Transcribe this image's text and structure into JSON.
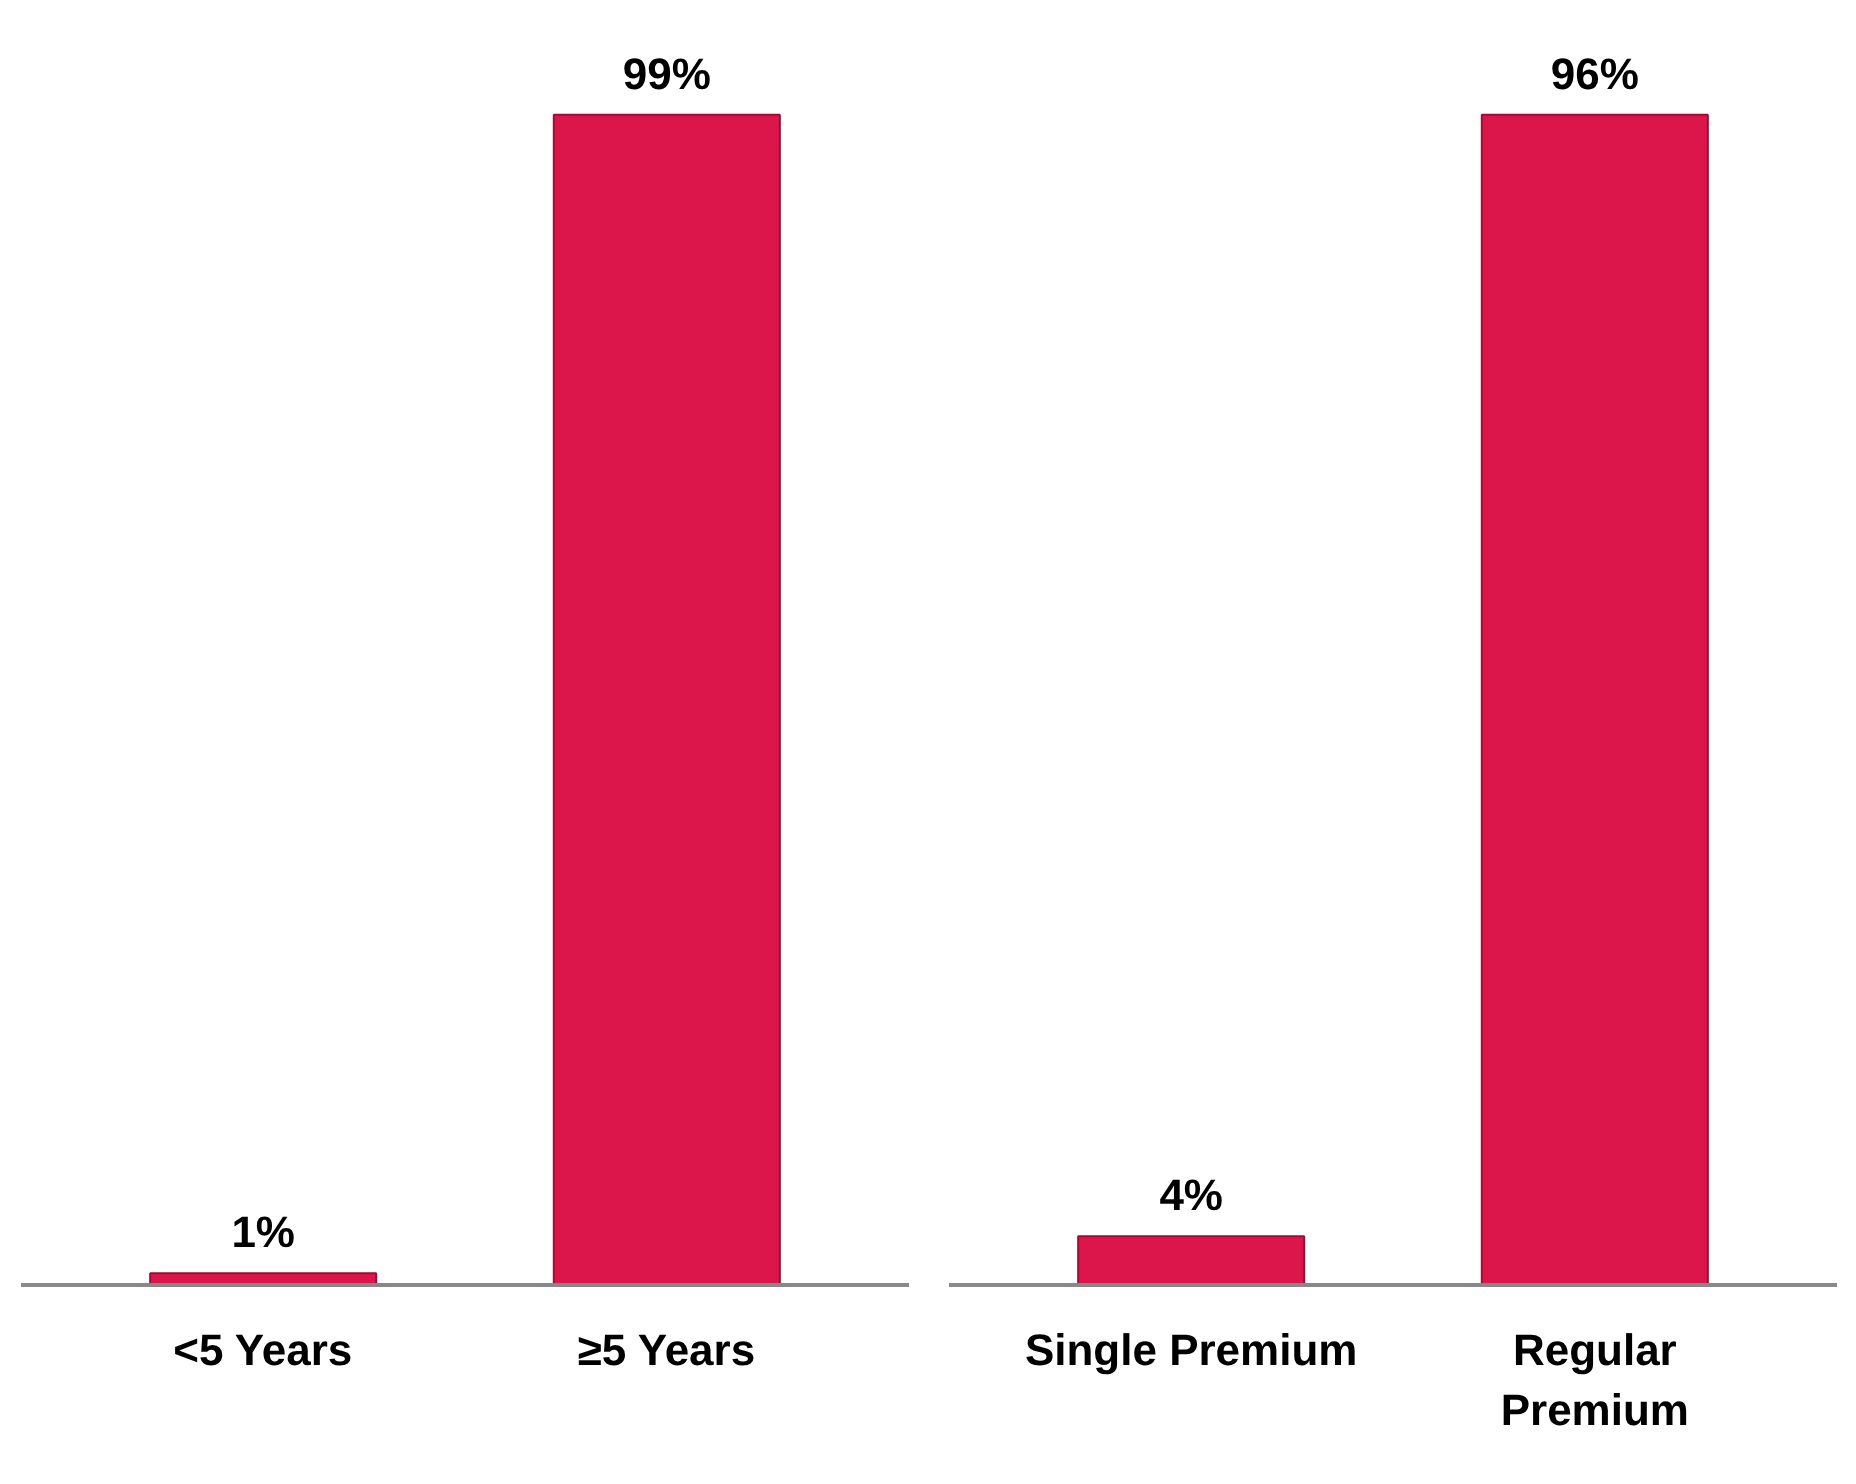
{
  "chart_data": [
    {
      "type": "bar",
      "categories": [
        "<5 Years",
        "≥5 Years"
      ],
      "series": [
        {
          "color": "#dc164b",
          "values": [
            1,
            99
          ],
          "value_labels": [
            "1%",
            "99%"
          ]
        }
      ]
    },
    {
      "type": "bar",
      "categories": [
        "Single Premium",
        "Regular Premium"
      ],
      "series": [
        {
          "color": "#dc164b",
          "values": [
            4,
            96
          ],
          "value_labels": [
            "4%",
            "96%"
          ]
        }
      ]
    }
  ]
}
